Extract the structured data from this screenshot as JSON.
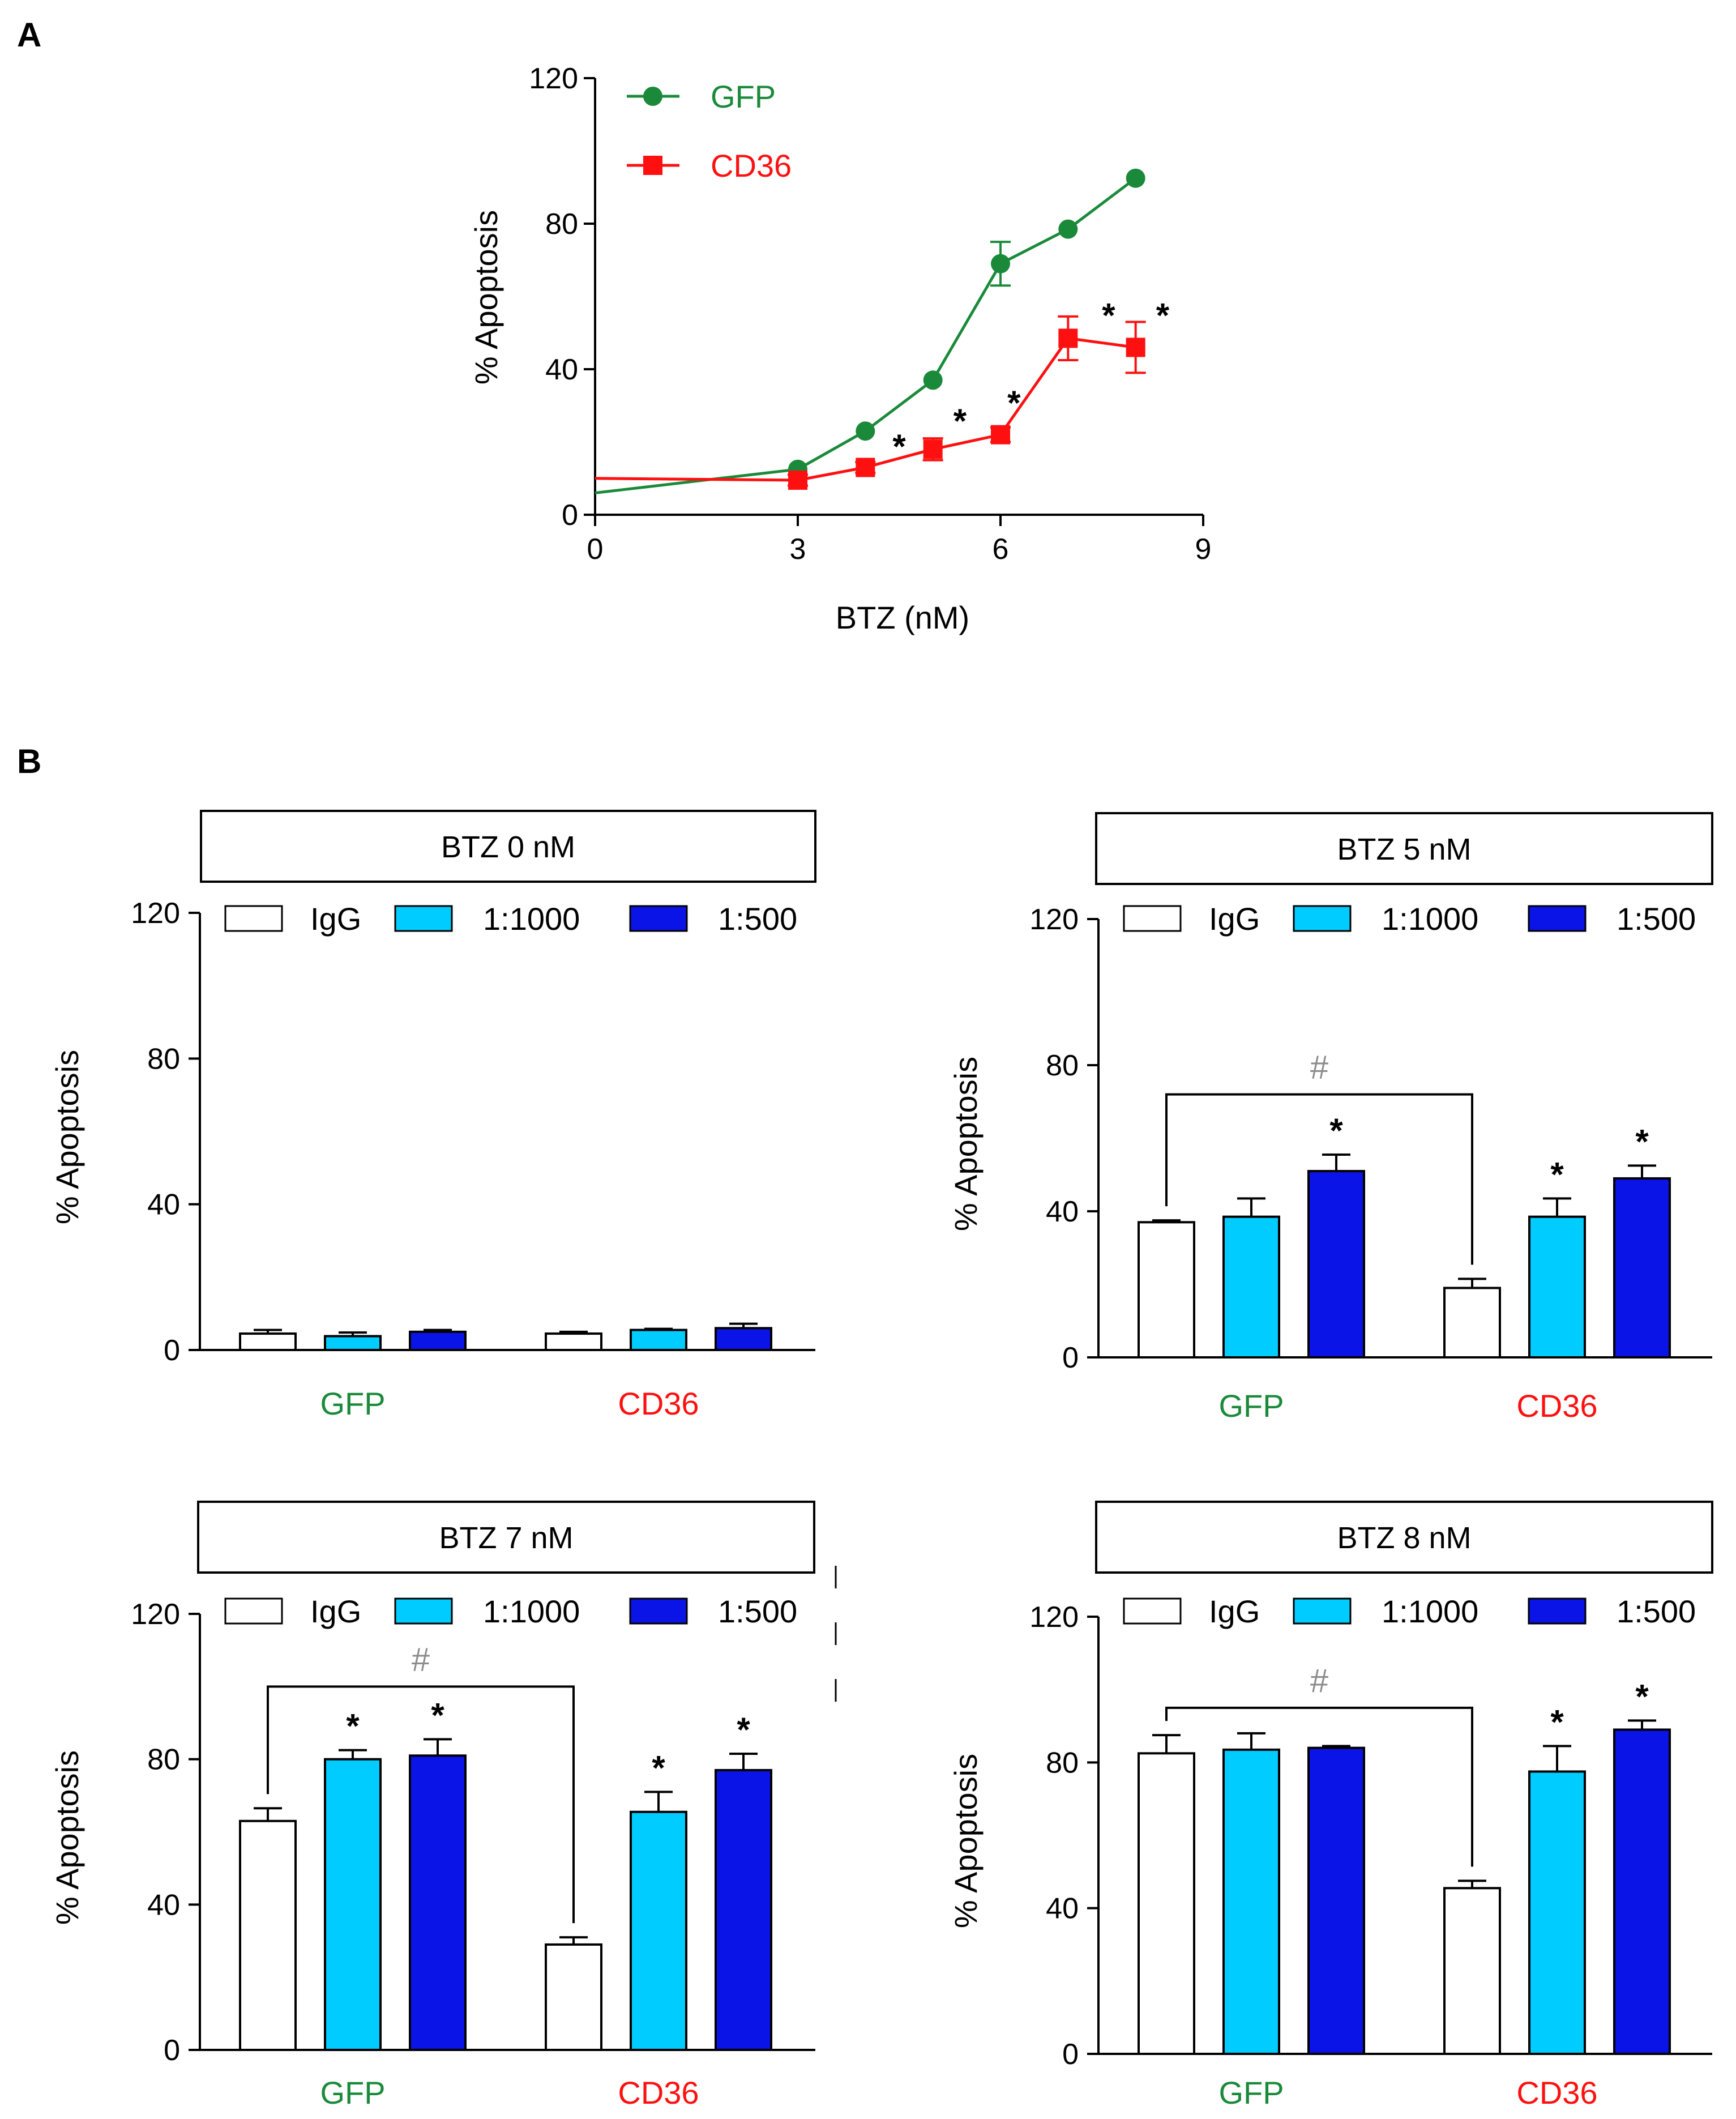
{
  "colors": {
    "gfp": "#1a8a3a",
    "cd36": "#ff1010",
    "igg": "#ffffff",
    "d1000": "#00ccff",
    "d500": "#0a14e6",
    "hash": "#8c8c8c"
  },
  "chart_data": [
    {
      "type": "line",
      "panel_label": "A",
      "xlabel": "BTZ (nM)",
      "ylabel": "% Apoptosis",
      "xlim": [
        0,
        9
      ],
      "ylim": [
        0,
        120
      ],
      "xticks": [
        "0",
        "3",
        "6",
        "9"
      ],
      "yticks": [
        "0",
        "40",
        "80",
        "120"
      ],
      "legend": [
        {
          "name": "GFP",
          "marker": "circle",
          "color": "#1a8a3a"
        },
        {
          "name": "CD36",
          "marker": "square",
          "color": "#ff1010"
        }
      ],
      "series": [
        {
          "name": "GFP",
          "x": [
            0,
            3,
            4,
            5,
            6,
            7,
            8
          ],
          "y": [
            6,
            12.5,
            23,
            37,
            69,
            78.5,
            92.5
          ],
          "err": [
            0,
            0,
            0,
            0,
            6,
            0,
            0
          ],
          "marker_x_start": 3
        },
        {
          "name": "CD36",
          "x": [
            0,
            3,
            4,
            5,
            6,
            7,
            8
          ],
          "y": [
            10,
            9.5,
            13,
            18,
            22,
            48.5,
            46
          ],
          "err": [
            0,
            1.5,
            1.5,
            3,
            2,
            6,
            7
          ],
          "marker_x_start": 3
        }
      ],
      "annotations": [
        {
          "text": "*",
          "x": 4.5,
          "y": 19
        },
        {
          "text": "*",
          "x": 5.4,
          "y": 26
        },
        {
          "text": "*",
          "x": 6.2,
          "y": 31
        },
        {
          "text": "*",
          "x": 7.6,
          "y": 55
        },
        {
          "text": "*",
          "x": 8.4,
          "y": 55
        }
      ]
    },
    {
      "type": "bar",
      "panel_label": "B",
      "title": "BTZ 0 nM",
      "ylabel": "% Apoptosis",
      "ylim": [
        0,
        120
      ],
      "yticks": [
        "0",
        "40",
        "80",
        "120"
      ],
      "groups": [
        "GFP",
        "CD36"
      ],
      "legend": [
        "IgG",
        "1:1000",
        "1:500"
      ],
      "series": [
        {
          "name": "IgG",
          "values": [
            4.5,
            4.5
          ],
          "err": [
            1,
            0.5
          ]
        },
        {
          "name": "1:1000",
          "values": [
            3.8,
            5.5
          ],
          "err": [
            1,
            0.3
          ]
        },
        {
          "name": "1:500",
          "values": [
            5,
            6
          ],
          "err": [
            0.5,
            1.2
          ]
        }
      ],
      "stars": [],
      "bracket": null
    },
    {
      "type": "bar",
      "title": "BTZ 5 nM",
      "ylabel": "% Apoptosis",
      "ylim": [
        0,
        120
      ],
      "yticks": [
        "0",
        "40",
        "80",
        "120"
      ],
      "groups": [
        "GFP",
        "CD36"
      ],
      "legend": [
        "IgG",
        "1:1000",
        "1:500"
      ],
      "series": [
        {
          "name": "IgG",
          "values": [
            37,
            19
          ],
          "err": [
            0.5,
            2.5
          ]
        },
        {
          "name": "1:1000",
          "values": [
            38.5,
            38.5
          ],
          "err": [
            5,
            5
          ]
        },
        {
          "name": "1:500",
          "values": [
            51,
            49
          ],
          "err": [
            4.5,
            3.5
          ]
        }
      ],
      "stars": [
        {
          "group": 0,
          "series": 2,
          "text": "*"
        },
        {
          "group": 1,
          "series": 1,
          "text": "*"
        },
        {
          "group": 1,
          "series": 2,
          "text": "*"
        }
      ],
      "bracket": {
        "text": "#",
        "level": 72
      }
    },
    {
      "type": "bar",
      "title": "BTZ 7 nM",
      "ylabel": "% Apoptosis",
      "ylim": [
        0,
        120
      ],
      "yticks": [
        "0",
        "40",
        "80",
        "120"
      ],
      "groups": [
        "GFP",
        "CD36"
      ],
      "legend": [
        "IgG",
        "1:1000",
        "1:500"
      ],
      "series": [
        {
          "name": "IgG",
          "values": [
            63,
            29
          ],
          "err": [
            3.5,
            2
          ]
        },
        {
          "name": "1:1000",
          "values": [
            80,
            65.5
          ],
          "err": [
            2.5,
            5.5
          ]
        },
        {
          "name": "1:500",
          "values": [
            81,
            77
          ],
          "err": [
            4.5,
            4.5
          ]
        }
      ],
      "stars": [
        {
          "group": 0,
          "series": 1,
          "text": "*"
        },
        {
          "group": 0,
          "series": 2,
          "text": "*"
        },
        {
          "group": 1,
          "series": 1,
          "text": "*"
        },
        {
          "group": 1,
          "series": 2,
          "text": "*"
        }
      ],
      "bracket": {
        "text": "#",
        "level": 100
      }
    },
    {
      "type": "bar",
      "title": "BTZ 8 nM",
      "ylabel": "% Apoptosis",
      "ylim": [
        0,
        120
      ],
      "yticks": [
        "0",
        "40",
        "80",
        "120"
      ],
      "groups": [
        "GFP",
        "CD36"
      ],
      "legend": [
        "IgG",
        "1:1000",
        "1:500"
      ],
      "series": [
        {
          "name": "IgG",
          "values": [
            82.5,
            45.5
          ],
          "err": [
            5,
            2
          ]
        },
        {
          "name": "1:1000",
          "values": [
            83.5,
            77.5
          ],
          "err": [
            4.5,
            7
          ]
        },
        {
          "name": "1:500",
          "values": [
            84,
            89
          ],
          "err": [
            0.5,
            2.5
          ]
        }
      ],
      "stars": [
        {
          "group": 1,
          "series": 1,
          "text": "*"
        },
        {
          "group": 1,
          "series": 2,
          "text": "*"
        }
      ],
      "bracket": {
        "text": "#",
        "level": 95
      }
    }
  ]
}
